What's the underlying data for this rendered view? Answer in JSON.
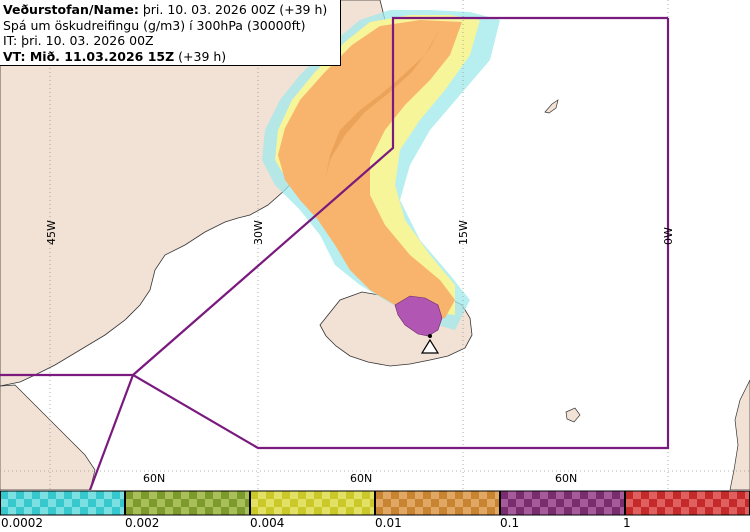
{
  "header": {
    "line1_bold": "Veðurstofan/Name:",
    "line1_rest": " þri. 10. 03. 2026 00Z (+39 h)",
    "line2": "Spá um öskudreifingu (g/m3) í 300hPa (30000ft)",
    "line3": "IT: þri. 10. 03. 2026 00Z",
    "line4_bold": "VT: Mið. 11.03.2026 15Z",
    "line4_rest": " (+39 h)"
  },
  "map": {
    "lon_labels": [
      "45W",
      "30W",
      "15W",
      "0W"
    ],
    "lat_labels": [
      "60N",
      "60N",
      "60N"
    ],
    "colors": {
      "land": "#f2e1d5",
      "sea": "#ffffff",
      "boundary": "#7a1a7e",
      "ash_cyan": "#9fe8ea",
      "ash_yellow": "#f7f59a",
      "ash_orange": "#f8b46c",
      "ash_dark_orange": "#eba35a",
      "ash_purple": "#b156b3"
    },
    "icons": [
      "volcano-triangle-icon"
    ]
  },
  "legend": {
    "ticks": [
      "0.0002",
      "0.002",
      "0.004",
      "0.01",
      "0.1",
      "1"
    ],
    "bins": [
      {
        "color": "#36c8cc",
        "alt": "#7ae0e2"
      },
      {
        "color": "#7d9a2c",
        "alt": "#a9bf5a"
      },
      {
        "color": "#cbc92a",
        "alt": "#e2e065"
      },
      {
        "color": "#c98431",
        "alt": "#e0a862"
      },
      {
        "color": "#7a2d6e",
        "alt": "#a55b9a"
      },
      {
        "color": "#c42a2a",
        "alt": "#e06060"
      }
    ]
  }
}
